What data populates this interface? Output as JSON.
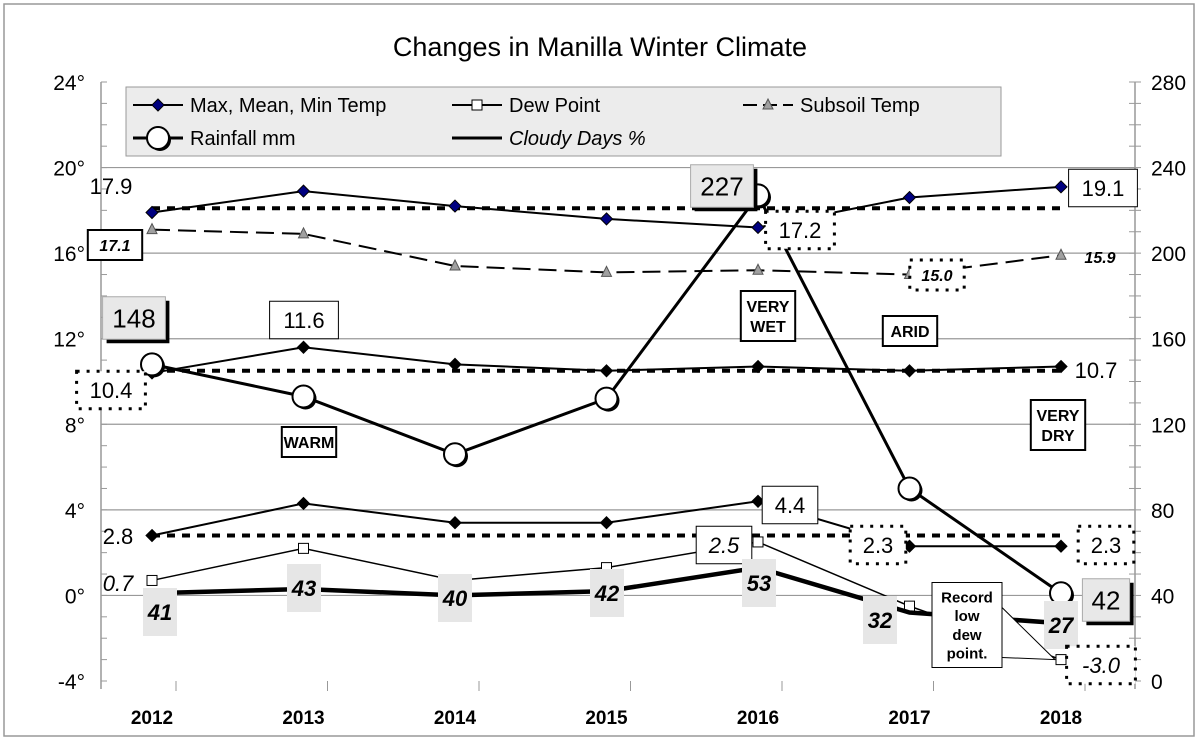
{
  "chart_data": {
    "type": "line",
    "title": "Changes in Manilla Winter Climate",
    "categories": [
      "2012",
      "2013",
      "2014",
      "2015",
      "2016",
      "2017",
      "2018"
    ],
    "y_left": {
      "range": [
        -4,
        24
      ],
      "ticks": [
        "-4°",
        "0°",
        "4°",
        "8°",
        "12°",
        "16°",
        "20°",
        "24°"
      ],
      "tick_values": [
        -4,
        0,
        4,
        8,
        12,
        16,
        20,
        24
      ]
    },
    "y_right": {
      "range": [
        0,
        280
      ],
      "ticks": [
        "0",
        "40",
        "80",
        "120",
        "160",
        "200",
        "240",
        "280"
      ],
      "tick_values": [
        0,
        40,
        80,
        120,
        160,
        200,
        240,
        280
      ]
    },
    "grid": true,
    "legend_placement": "top",
    "legend": [
      "Max, Mean, Min Temp",
      "Dew Point",
      "Subsoil Temp",
      "Rainfall mm",
      "Cloudy Days %"
    ],
    "series": [
      {
        "name": "Max, Mean, Min Temp",
        "part": "max",
        "axis": "left",
        "values": [
          17.9,
          18.9,
          18.2,
          17.6,
          17.2,
          18.6,
          19.1
        ],
        "average": 18.1,
        "marker_color": "#000080"
      },
      {
        "name": "Max, Mean, Min Temp",
        "part": "mean",
        "axis": "left",
        "values": [
          10.4,
          11.6,
          10.8,
          10.5,
          10.7,
          10.5,
          10.7
        ],
        "average": 10.5,
        "marker_color": "#000000"
      },
      {
        "name": "Max, Mean, Min Temp",
        "part": "min",
        "axis": "left",
        "values": [
          2.8,
          4.3,
          3.4,
          3.4,
          4.4,
          2.3,
          2.3
        ],
        "average": 2.8,
        "marker_color": "#000000"
      },
      {
        "name": "Dew Point",
        "axis": "left",
        "values": [
          0.7,
          2.2,
          0.7,
          1.3,
          2.5,
          -0.5,
          -3.0
        ]
      },
      {
        "name": "Subsoil Temp",
        "axis": "left",
        "values": [
          17.1,
          16.9,
          15.4,
          15.1,
          15.2,
          15.0,
          15.9
        ],
        "marker_color": "#a0a0a0"
      },
      {
        "name": "Rainfall mm",
        "axis": "right",
        "values": [
          148,
          133,
          106,
          132,
          227,
          90,
          41
        ]
      },
      {
        "name": "Cloudy Days %",
        "axis": "right",
        "values": [
          41,
          43,
          40,
          42,
          53,
          32,
          27
        ]
      }
    ],
    "annotations": [
      "17.9",
      "17.1",
      "148",
      "11.6",
      "10.4",
      "WARM",
      "227",
      "17.2",
      "19.1",
      "15.9",
      "15.0",
      "VERY WET",
      "ARID",
      "10.7",
      "VERY DRY",
      "2.8",
      "4.4",
      "2.3",
      "2.3",
      "0.7",
      "2.5",
      "41",
      "43",
      "40",
      "42",
      "53",
      "32",
      "27",
      "42",
      "Record low dew point.",
      "-3.0"
    ]
  }
}
